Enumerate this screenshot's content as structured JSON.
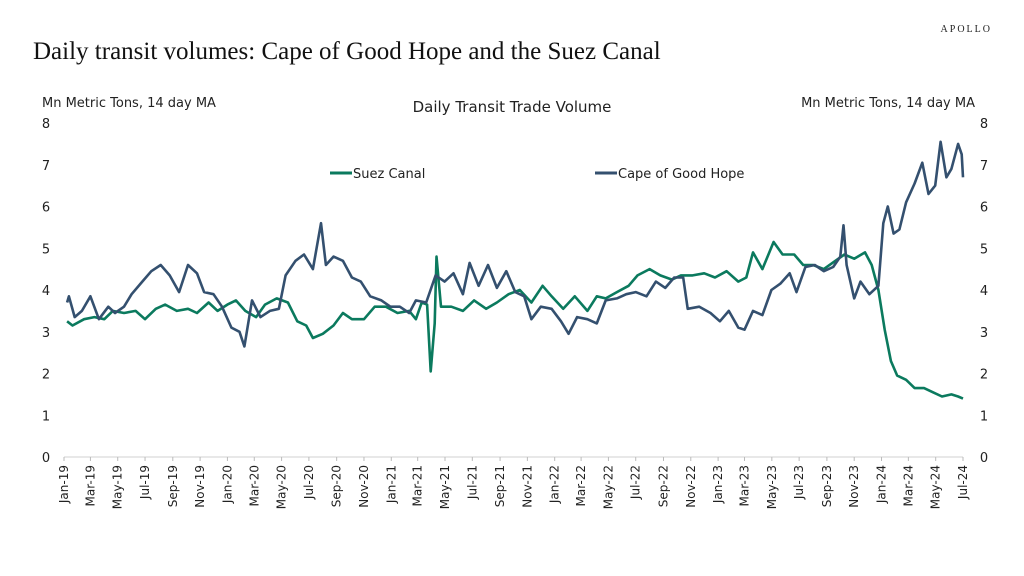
{
  "brand": "APOLLO",
  "title": "Daily transit volumes: Cape of Good Hope and the Suez Canal",
  "chart_data": {
    "type": "line",
    "title": "Daily Transit Trade Volume",
    "ylabel_left": "Mn Metric Tons, 14 day MA",
    "ylabel_right": "Mn Metric Tons, 14 day MA",
    "ylim": [
      0,
      8
    ],
    "yticks": [
      "0",
      "1",
      "2",
      "3",
      "4",
      "5",
      "6",
      "7",
      "8"
    ],
    "xlim": [
      "2019-01-01",
      "2024-07-01"
    ],
    "xticks": [
      {
        "label": "Jan-19",
        "date": "2019-01-01"
      },
      {
        "label": "Mar-19",
        "date": "2019-03-01"
      },
      {
        "label": "May-19",
        "date": "2019-05-01"
      },
      {
        "label": "Jul-19",
        "date": "2019-07-01"
      },
      {
        "label": "Sep-19",
        "date": "2019-09-01"
      },
      {
        "label": "Nov-19",
        "date": "2019-11-01"
      },
      {
        "label": "Jan-20",
        "date": "2020-01-01"
      },
      {
        "label": "Mar-20",
        "date": "2020-03-01"
      },
      {
        "label": "May-20",
        "date": "2020-05-01"
      },
      {
        "label": "Jul-20",
        "date": "2020-07-01"
      },
      {
        "label": "Sep-20",
        "date": "2020-09-01"
      },
      {
        "label": "Nov-20",
        "date": "2020-11-01"
      },
      {
        "label": "Jan-21",
        "date": "2021-01-01"
      },
      {
        "label": "Mar-21",
        "date": "2021-03-01"
      },
      {
        "label": "May-21",
        "date": "2021-05-01"
      },
      {
        "label": "Jul-21",
        "date": "2021-07-01"
      },
      {
        "label": "Sep-21",
        "date": "2021-09-01"
      },
      {
        "label": "Nov-21",
        "date": "2021-11-01"
      },
      {
        "label": "Jan-22",
        "date": "2022-01-01"
      },
      {
        "label": "Mar-22",
        "date": "2022-03-01"
      },
      {
        "label": "May-22",
        "date": "2022-05-01"
      },
      {
        "label": "Jul-22",
        "date": "2022-07-01"
      },
      {
        "label": "Sep-22",
        "date": "2022-09-01"
      },
      {
        "label": "Nov-22",
        "date": "2022-11-01"
      },
      {
        "label": "Jan-23",
        "date": "2023-01-01"
      },
      {
        "label": "Mar-23",
        "date": "2023-03-01"
      },
      {
        "label": "May-23",
        "date": "2023-05-01"
      },
      {
        "label": "Jul-23",
        "date": "2023-07-01"
      },
      {
        "label": "Sep-23",
        "date": "2023-09-01"
      },
      {
        "label": "Nov-23",
        "date": "2023-11-01"
      },
      {
        "label": "Jan-24",
        "date": "2024-01-01"
      },
      {
        "label": "Mar-24",
        "date": "2024-03-01"
      },
      {
        "label": "May-24",
        "date": "2024-05-01"
      },
      {
        "label": "Jul-24",
        "date": "2024-07-01"
      }
    ],
    "grid": false,
    "legend_placement": "top",
    "series": [
      {
        "name": "Suez Canal",
        "color": "#0b7a5e",
        "points": [
          [
            "2019-01-08",
            3.25
          ],
          [
            "2019-01-20",
            3.15
          ],
          [
            "2019-02-15",
            3.3
          ],
          [
            "2019-03-10",
            3.35
          ],
          [
            "2019-04-01",
            3.3
          ],
          [
            "2019-04-20",
            3.5
          ],
          [
            "2019-05-15",
            3.45
          ],
          [
            "2019-06-10",
            3.5
          ],
          [
            "2019-07-01",
            3.3
          ],
          [
            "2019-07-25",
            3.55
          ],
          [
            "2019-08-15",
            3.65
          ],
          [
            "2019-09-10",
            3.5
          ],
          [
            "2019-10-05",
            3.55
          ],
          [
            "2019-10-25",
            3.45
          ],
          [
            "2019-11-20",
            3.7
          ],
          [
            "2019-12-10",
            3.5
          ],
          [
            "2020-01-01",
            3.65
          ],
          [
            "2020-01-20",
            3.75
          ],
          [
            "2020-02-10",
            3.5
          ],
          [
            "2020-03-05",
            3.35
          ],
          [
            "2020-03-25",
            3.65
          ],
          [
            "2020-04-20",
            3.8
          ],
          [
            "2020-05-15",
            3.7
          ],
          [
            "2020-06-05",
            3.25
          ],
          [
            "2020-06-25",
            3.15
          ],
          [
            "2020-07-10",
            2.85
          ],
          [
            "2020-08-01",
            2.95
          ],
          [
            "2020-08-25",
            3.15
          ],
          [
            "2020-09-15",
            3.45
          ],
          [
            "2020-10-05",
            3.3
          ],
          [
            "2020-11-01",
            3.3
          ],
          [
            "2020-11-25",
            3.6
          ],
          [
            "2020-12-20",
            3.6
          ],
          [
            "2021-01-15",
            3.45
          ],
          [
            "2021-02-10",
            3.5
          ],
          [
            "2021-02-25",
            3.3
          ],
          [
            "2021-03-10",
            3.7
          ],
          [
            "2021-03-22",
            3.65
          ],
          [
            "2021-03-30",
            2.05
          ],
          [
            "2021-04-08",
            3.2
          ],
          [
            "2021-04-12",
            4.8
          ],
          [
            "2021-04-22",
            3.6
          ],
          [
            "2021-05-15",
            3.6
          ],
          [
            "2021-06-10",
            3.5
          ],
          [
            "2021-07-05",
            3.75
          ],
          [
            "2021-08-01",
            3.55
          ],
          [
            "2021-08-25",
            3.7
          ],
          [
            "2021-09-20",
            3.9
          ],
          [
            "2021-10-15",
            4.0
          ],
          [
            "2021-11-10",
            3.7
          ],
          [
            "2021-12-05",
            4.1
          ],
          [
            "2021-12-25",
            3.85
          ],
          [
            "2022-01-20",
            3.55
          ],
          [
            "2022-02-15",
            3.85
          ],
          [
            "2022-03-15",
            3.5
          ],
          [
            "2022-04-05",
            3.85
          ],
          [
            "2022-04-25",
            3.8
          ],
          [
            "2022-05-20",
            3.95
          ],
          [
            "2022-06-15",
            4.1
          ],
          [
            "2022-07-05",
            4.35
          ],
          [
            "2022-08-01",
            4.5
          ],
          [
            "2022-08-25",
            4.35
          ],
          [
            "2022-09-20",
            4.25
          ],
          [
            "2022-10-10",
            4.35
          ],
          [
            "2022-11-05",
            4.35
          ],
          [
            "2022-12-01",
            4.4
          ],
          [
            "2022-12-25",
            4.3
          ],
          [
            "2023-01-20",
            4.45
          ],
          [
            "2023-02-15",
            4.2
          ],
          [
            "2023-03-05",
            4.3
          ],
          [
            "2023-03-20",
            4.9
          ],
          [
            "2023-04-10",
            4.5
          ],
          [
            "2023-05-05",
            5.15
          ],
          [
            "2023-05-25",
            4.85
          ],
          [
            "2023-06-20",
            4.85
          ],
          [
            "2023-07-10",
            4.6
          ],
          [
            "2023-08-01",
            4.6
          ],
          [
            "2023-08-25",
            4.5
          ],
          [
            "2023-09-20",
            4.7
          ],
          [
            "2023-10-10",
            4.85
          ],
          [
            "2023-11-01",
            4.75
          ],
          [
            "2023-11-25",
            4.9
          ],
          [
            "2023-12-10",
            4.6
          ],
          [
            "2023-12-25",
            4.0
          ],
          [
            "2024-01-08",
            3.05
          ],
          [
            "2024-01-22",
            2.3
          ],
          [
            "2024-02-05",
            1.95
          ],
          [
            "2024-02-25",
            1.85
          ],
          [
            "2024-03-15",
            1.65
          ],
          [
            "2024-04-05",
            1.65
          ],
          [
            "2024-04-25",
            1.55
          ],
          [
            "2024-05-15",
            1.45
          ],
          [
            "2024-06-05",
            1.5
          ],
          [
            "2024-06-20",
            1.45
          ],
          [
            "2024-07-01",
            1.4
          ]
        ]
      },
      {
        "name": "Cape of Good Hope",
        "color": "#34506f",
        "points": [
          [
            "2019-01-08",
            3.7
          ],
          [
            "2019-01-12",
            3.85
          ],
          [
            "2019-01-25",
            3.35
          ],
          [
            "2019-02-10",
            3.5
          ],
          [
            "2019-03-01",
            3.85
          ],
          [
            "2019-03-20",
            3.3
          ],
          [
            "2019-04-10",
            3.6
          ],
          [
            "2019-04-25",
            3.45
          ],
          [
            "2019-05-15",
            3.6
          ],
          [
            "2019-06-01",
            3.9
          ],
          [
            "2019-06-25",
            4.2
          ],
          [
            "2019-07-15",
            4.45
          ],
          [
            "2019-08-05",
            4.6
          ],
          [
            "2019-08-25",
            4.35
          ],
          [
            "2019-09-15",
            3.95
          ],
          [
            "2019-10-05",
            4.6
          ],
          [
            "2019-10-25",
            4.4
          ],
          [
            "2019-11-10",
            3.95
          ],
          [
            "2019-12-01",
            3.9
          ],
          [
            "2019-12-20",
            3.6
          ],
          [
            "2020-01-10",
            3.1
          ],
          [
            "2020-01-28",
            3.0
          ],
          [
            "2020-02-08",
            2.65
          ],
          [
            "2020-02-25",
            3.75
          ],
          [
            "2020-03-15",
            3.35
          ],
          [
            "2020-04-05",
            3.5
          ],
          [
            "2020-04-25",
            3.55
          ],
          [
            "2020-05-10",
            4.35
          ],
          [
            "2020-06-01",
            4.7
          ],
          [
            "2020-06-20",
            4.85
          ],
          [
            "2020-07-10",
            4.5
          ],
          [
            "2020-07-28",
            5.6
          ],
          [
            "2020-08-08",
            4.6
          ],
          [
            "2020-08-25",
            4.8
          ],
          [
            "2020-09-15",
            4.7
          ],
          [
            "2020-10-05",
            4.3
          ],
          [
            "2020-10-25",
            4.2
          ],
          [
            "2020-11-15",
            3.85
          ],
          [
            "2020-12-10",
            3.75
          ],
          [
            "2020-12-30",
            3.6
          ],
          [
            "2021-01-20",
            3.6
          ],
          [
            "2021-02-10",
            3.45
          ],
          [
            "2021-02-25",
            3.75
          ],
          [
            "2021-03-20",
            3.7
          ],
          [
            "2021-04-10",
            4.35
          ],
          [
            "2021-04-30",
            4.2
          ],
          [
            "2021-05-20",
            4.4
          ],
          [
            "2021-06-10",
            3.9
          ],
          [
            "2021-06-25",
            4.65
          ],
          [
            "2021-07-15",
            4.1
          ],
          [
            "2021-08-05",
            4.6
          ],
          [
            "2021-08-25",
            4.05
          ],
          [
            "2021-09-15",
            4.45
          ],
          [
            "2021-10-05",
            3.95
          ],
          [
            "2021-10-25",
            3.85
          ],
          [
            "2021-11-10",
            3.3
          ],
          [
            "2021-12-01",
            3.6
          ],
          [
            "2021-12-25",
            3.55
          ],
          [
            "2022-01-15",
            3.25
          ],
          [
            "2022-02-01",
            2.95
          ],
          [
            "2022-02-20",
            3.35
          ],
          [
            "2022-03-15",
            3.3
          ],
          [
            "2022-04-05",
            3.2
          ],
          [
            "2022-04-25",
            3.75
          ],
          [
            "2022-05-20",
            3.8
          ],
          [
            "2022-06-10",
            3.9
          ],
          [
            "2022-07-01",
            3.95
          ],
          [
            "2022-07-25",
            3.85
          ],
          [
            "2022-08-15",
            4.2
          ],
          [
            "2022-09-05",
            4.05
          ],
          [
            "2022-09-25",
            4.3
          ],
          [
            "2022-10-15",
            4.3
          ],
          [
            "2022-10-25",
            3.55
          ],
          [
            "2022-11-20",
            3.6
          ],
          [
            "2022-12-15",
            3.45
          ],
          [
            "2023-01-05",
            3.25
          ],
          [
            "2023-01-25",
            3.5
          ],
          [
            "2023-02-15",
            3.1
          ],
          [
            "2023-03-01",
            3.05
          ],
          [
            "2023-03-20",
            3.5
          ],
          [
            "2023-04-10",
            3.4
          ],
          [
            "2023-04-30",
            4.0
          ],
          [
            "2023-05-20",
            4.15
          ],
          [
            "2023-06-10",
            4.4
          ],
          [
            "2023-06-25",
            3.95
          ],
          [
            "2023-07-15",
            4.55
          ],
          [
            "2023-08-05",
            4.6
          ],
          [
            "2023-08-25",
            4.45
          ],
          [
            "2023-09-15",
            4.55
          ],
          [
            "2023-10-01",
            4.8
          ],
          [
            "2023-10-08",
            5.55
          ],
          [
            "2023-10-15",
            4.6
          ],
          [
            "2023-11-01",
            3.8
          ],
          [
            "2023-11-15",
            4.2
          ],
          [
            "2023-12-05",
            3.9
          ],
          [
            "2023-12-25",
            4.1
          ],
          [
            "2024-01-05",
            5.6
          ],
          [
            "2024-01-15",
            6.0
          ],
          [
            "2024-01-28",
            5.35
          ],
          [
            "2024-02-10",
            5.45
          ],
          [
            "2024-02-25",
            6.1
          ],
          [
            "2024-03-15",
            6.55
          ],
          [
            "2024-04-01",
            7.05
          ],
          [
            "2024-04-15",
            6.3
          ],
          [
            "2024-04-30",
            6.5
          ],
          [
            "2024-05-12",
            7.55
          ],
          [
            "2024-05-25",
            6.7
          ],
          [
            "2024-06-05",
            6.9
          ],
          [
            "2024-06-20",
            7.5
          ],
          [
            "2024-06-28",
            7.25
          ],
          [
            "2024-07-01",
            6.7
          ]
        ]
      }
    ]
  }
}
